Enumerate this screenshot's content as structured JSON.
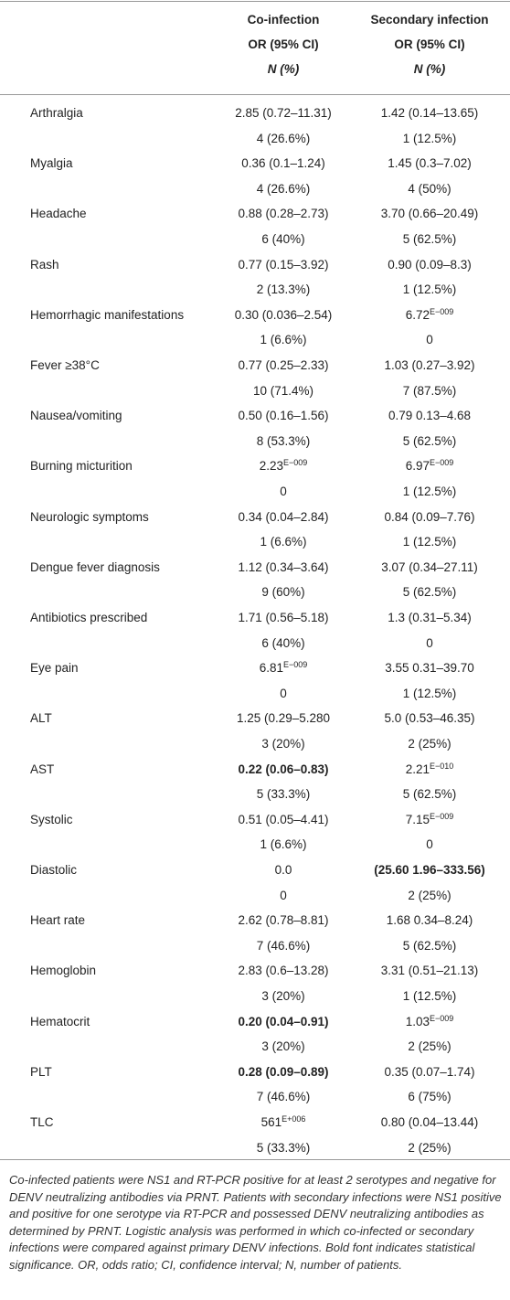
{
  "table": {
    "header": [
      {
        "title": "Co-infection",
        "sub": "OR (95% CI)",
        "n": "N (%)"
      },
      {
        "title": "Secondary infection",
        "sub": "OR (95% CI)",
        "n": "N (%)"
      }
    ],
    "rows": [
      {
        "label": "Arthralgia",
        "cells": [
          {
            "or": "2.85 (0.72–11.31)",
            "n": "4 (26.6%)"
          },
          {
            "or": "1.42 (0.14–13.65)",
            "n": "1 (12.5%)"
          }
        ]
      },
      {
        "label": "Myalgia",
        "cells": [
          {
            "or": "0.36 (0.1–1.24)",
            "n": "4 (26.6%)"
          },
          {
            "or": "1.45 (0.3–7.02)",
            "n": "4 (50%)"
          }
        ]
      },
      {
        "label": "Headache",
        "cells": [
          {
            "or": "0.88 (0.28–2.73)",
            "n": "6 (40%)"
          },
          {
            "or": "3.70 (0.66–20.49)",
            "n": "5 (62.5%)"
          }
        ]
      },
      {
        "label": "Rash",
        "cells": [
          {
            "or": "0.77 (0.15–3.92)",
            "n": "2 (13.3%)"
          },
          {
            "or": "0.90 (0.09–8.3)",
            "n": "1 (12.5%)"
          }
        ]
      },
      {
        "label": "Hemorrhagic manifestations",
        "cells": [
          {
            "or": "0.30 (0.036–2.54)",
            "n": "1 (6.6%)"
          },
          {
            "or": {
              "text": "6.72",
              "sup": "E−009"
            },
            "n": "0"
          }
        ]
      },
      {
        "label": "Fever ≥38°C",
        "cells": [
          {
            "or": "0.77 (0.25–2.33)",
            "n": "10 (71.4%)"
          },
          {
            "or": "1.03 (0.27–3.92)",
            "n": "7 (87.5%)"
          }
        ]
      },
      {
        "label": "Nausea/vomiting",
        "cells": [
          {
            "or": "0.50 (0.16–1.56)",
            "n": "8 (53.3%)"
          },
          {
            "or": "0.79 0.13–4.68",
            "n": "5 (62.5%)"
          }
        ]
      },
      {
        "label": "Burning micturition",
        "cells": [
          {
            "or": {
              "text": "2.23",
              "sup": "E−009"
            },
            "n": "0"
          },
          {
            "or": {
              "text": "6.97",
              "sup": "E−009"
            },
            "n": "1 (12.5%)"
          }
        ]
      },
      {
        "label": "Neurologic symptoms",
        "cells": [
          {
            "or": "0.34 (0.04–2.84)",
            "n": "1 (6.6%)"
          },
          {
            "or": "0.84 (0.09–7.76)",
            "n": "1 (12.5%)"
          }
        ]
      },
      {
        "label": "Dengue fever diagnosis",
        "cells": [
          {
            "or": "1.12 (0.34–3.64)",
            "n": "9 (60%)"
          },
          {
            "or": "3.07 (0.34–27.11)",
            "n": "5 (62.5%)"
          }
        ]
      },
      {
        "label": "Antibiotics prescribed",
        "cells": [
          {
            "or": "1.71 (0.56–5.18)",
            "n": "6 (40%)"
          },
          {
            "or": "1.3 (0.31–5.34)",
            "n": "0"
          }
        ]
      },
      {
        "label": "Eye pain",
        "cells": [
          {
            "or": {
              "text": "6.81",
              "sup": "E−009"
            },
            "n": "0"
          },
          {
            "or": "3.55 0.31–39.70",
            "n": "1 (12.5%)"
          }
        ]
      },
      {
        "label": "ALT",
        "cells": [
          {
            "or": "1.25 (0.29–5.280",
            "n": "3 (20%)"
          },
          {
            "or": "5.0 (0.53–46.35)",
            "n": "2 (25%)"
          }
        ]
      },
      {
        "label": "AST",
        "cells": [
          {
            "or": "0.22 (0.06–0.83)",
            "bold": true,
            "n": "5 (33.3%)"
          },
          {
            "or": {
              "text": "2.21",
              "sup": "E−010"
            },
            "n": "5 (62.5%)"
          }
        ]
      },
      {
        "label": "Systolic",
        "cells": [
          {
            "or": "0.51 (0.05–4.41)",
            "n": "1 (6.6%)"
          },
          {
            "or": {
              "text": "7.15",
              "sup": "E−009"
            },
            "n": "0"
          }
        ]
      },
      {
        "label": "Diastolic",
        "cells": [
          {
            "or": "0.0",
            "n": "0"
          },
          {
            "or": "(25.60 1.96–333.56)",
            "bold": true,
            "n": "2 (25%)"
          }
        ]
      },
      {
        "label": "Heart rate",
        "cells": [
          {
            "or": "2.62 (0.78–8.81)",
            "n": "7 (46.6%)"
          },
          {
            "or": "1.68 0.34–8.24)",
            "n": "5 (62.5%)"
          }
        ]
      },
      {
        "label": "Hemoglobin",
        "cells": [
          {
            "or": "2.83 (0.6–13.28)",
            "n": "3 (20%)"
          },
          {
            "or": "3.31 (0.51–21.13)",
            "n": "1 (12.5%)"
          }
        ]
      },
      {
        "label": "Hematocrit",
        "cells": [
          {
            "or": "0.20 (0.04–0.91)",
            "bold": true,
            "n": "3 (20%)"
          },
          {
            "or": {
              "text": "1.03",
              "sup": "E−009"
            },
            "n": "2 (25%)"
          }
        ]
      },
      {
        "label": "PLT",
        "cells": [
          {
            "or": "0.28 (0.09–0.89)",
            "bold": true,
            "n": "7 (46.6%)"
          },
          {
            "or": "0.35 (0.07–1.74)",
            "n": "6 (75%)"
          }
        ]
      },
      {
        "label": "TLC",
        "cells": [
          {
            "or": {
              "text": "561",
              "sup": "E+006"
            },
            "n": "5 (33.3%)"
          },
          {
            "or": "0.80 (0.04–13.44)",
            "n": "2 (25%)"
          }
        ]
      }
    ],
    "footnote": "Co-infected patients were NS1 and RT-PCR positive for at least 2 serotypes and negative for DENV neutralizing antibodies via PRNT. Patients with secondary infections were NS1 positive and positive for one serotype via RT-PCR and possessed DENV neutralizing antibodies as determined by PRNT. Logistic analysis was performed in which co-infected or secondary infections were compared against primary DENV infections. Bold font indicates statistical significance. OR, odds ratio; CI, confidence interval; N, number of patients."
  }
}
